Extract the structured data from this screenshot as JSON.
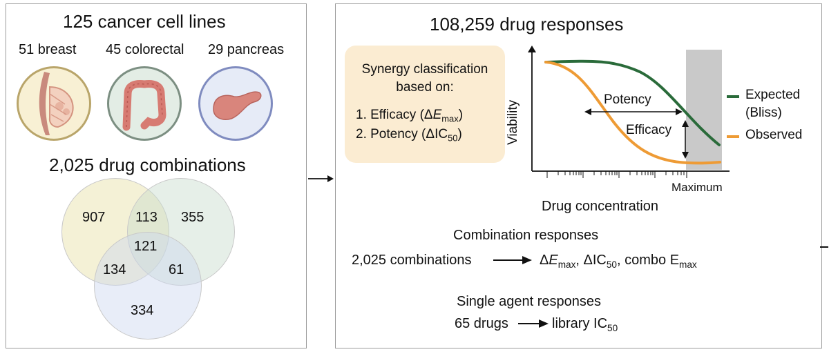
{
  "left": {
    "title": "125 cancer cell lines",
    "tissues": [
      {
        "label": "51 breast",
        "icon": "breast-tissue-icon"
      },
      {
        "label": "45 colorectal",
        "icon": "colon-icon"
      },
      {
        "label": "29 pancreas",
        "icon": "pancreas-icon"
      }
    ],
    "combos_title": "2,025 drug combinations",
    "venn": {
      "a_only": "907",
      "b_only": "355",
      "c_only": "334",
      "ab": "113",
      "ac": "134",
      "bc": "61",
      "abc": "121",
      "colors": {
        "a": "#f3efcf",
        "b": "#e0ebe2",
        "c": "#e3e8f4"
      }
    }
  },
  "right": {
    "title": "108,259 drug responses",
    "synergy": {
      "heading_line1": "Synergy classification",
      "heading_line2": "based on:",
      "item1_text": "1. Efficacy (Δ",
      "item1_var": "E",
      "item1_sub": "max",
      "item2_text": "2. Potency (ΔIC",
      "item2_sub": "50"
    },
    "plot": {
      "ylabel": "Viability",
      "xlabel": "Drug concentration",
      "max_label": "Maximum",
      "potency_label": "Potency",
      "efficacy_label": "Efficacy",
      "legend_expected_1": "Expected",
      "legend_expected_2": "(Bliss)",
      "legend_observed": "Observed",
      "colors": {
        "expected": "#2a6b3a",
        "observed": "#ee9b35",
        "shade": "#c9c9c9"
      }
    },
    "combination": {
      "heading": "Combination responses",
      "lhs": "2,025 combinations",
      "rhs_delta": "Δ",
      "rhs_e": "E",
      "rhs_max1": "max",
      "rhs_mid": ", ΔIC",
      "rhs_50": "50",
      "rhs_combo": ", combo E",
      "rhs_max2": "max"
    },
    "single": {
      "heading": "Single agent responses",
      "lhs": "65 drugs",
      "rhs": "library IC",
      "rhs_sub": "50"
    }
  }
}
